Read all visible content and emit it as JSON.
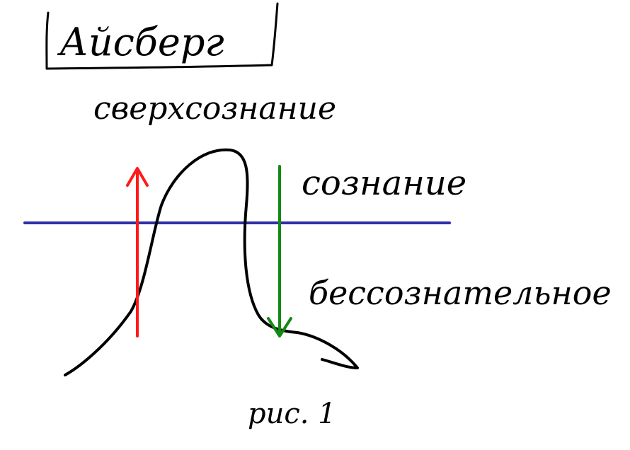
{
  "title": "Айсберг",
  "subtitle": "сверхсознание",
  "labels": {
    "conscious": "сознание",
    "unconscious": "бессознательное",
    "figure": "рис. 1"
  },
  "colors": {
    "background": "#ffffff",
    "ink": "#000000",
    "threshold_line": "#2f2fa8",
    "up_arrow": "#ff1a1a",
    "down_arrow": "#138a13"
  }
}
